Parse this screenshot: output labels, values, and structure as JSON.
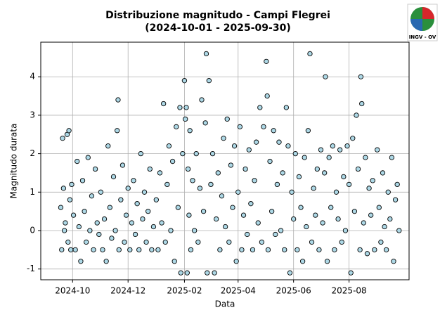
{
  "chart_data": {
    "type": "scatter",
    "title": "Distribuzione magnitudo - Campi Flegrei",
    "subtitle": "(2024-10-01 - 2025-09-30)",
    "x_label": "Data",
    "y_label": "Magnitudo durata",
    "logo_text": "INGV - OV",
    "color": "#add8e6",
    "edge_color": "#000000",
    "grid": true,
    "xlim": [
      "2024-08-27",
      "2025-10-06"
    ],
    "xticks": [
      {
        "value": "2024-10-01",
        "label": "2024-10"
      },
      {
        "value": "2024-12-01",
        "label": "2024-12"
      },
      {
        "value": "2025-02-01",
        "label": "2025-02"
      },
      {
        "value": "2025-04-01",
        "label": "2025-04"
      },
      {
        "value": "2025-06-01",
        "label": "2025-06"
      },
      {
        "value": "2025-08-01",
        "label": "2025-08"
      }
    ],
    "ylim": [
      -1.28,
      4.9
    ],
    "yticks": [
      -1,
      0,
      1,
      2,
      3,
      4
    ],
    "x": [
      "2024-09-18",
      "2024-09-19",
      "2024-09-20",
      "2024-09-21",
      "2024-09-22",
      "2024-09-23",
      "2024-09-25",
      "2024-09-26",
      "2024-09-27",
      "2024-09-28",
      "2024-09-29",
      "2024-09-30",
      "2024-10-02",
      "2024-10-04",
      "2024-10-06",
      "2024-10-08",
      "2024-10-10",
      "2024-10-12",
      "2024-10-14",
      "2024-10-16",
      "2024-10-18",
      "2024-10-20",
      "2024-10-22",
      "2024-10-24",
      "2024-10-26",
      "2024-10-28",
      "2024-10-30",
      "2024-11-01",
      "2024-11-03",
      "2024-11-05",
      "2024-11-07",
      "2024-11-09",
      "2024-11-11",
      "2024-11-13",
      "2024-11-15",
      "2024-11-17",
      "2024-11-19",
      "2024-11-20",
      "2024-11-21",
      "2024-11-23",
      "2024-11-25",
      "2024-11-27",
      "2024-11-29",
      "2024-12-01",
      "2024-12-03",
      "2024-12-05",
      "2024-12-07",
      "2024-12-09",
      "2024-12-11",
      "2024-12-13",
      "2024-12-15",
      "2024-12-17",
      "2024-12-19",
      "2024-12-21",
      "2024-12-23",
      "2024-12-25",
      "2024-12-27",
      "2024-12-29",
      "2025-01-01",
      "2025-01-03",
      "2025-01-05",
      "2025-01-07",
      "2025-01-09",
      "2025-01-11",
      "2025-01-13",
      "2025-01-15",
      "2025-01-17",
      "2025-01-19",
      "2025-01-21",
      "2025-01-23",
      "2025-01-25",
      "2025-01-27",
      "2025-01-28",
      "2025-01-30",
      "2025-02-01",
      "2025-02-02",
      "2025-02-03",
      "2025-02-04",
      "2025-02-05",
      "2025-02-06",
      "2025-02-07",
      "2025-02-08",
      "2025-02-10",
      "2025-02-12",
      "2025-02-14",
      "2025-02-16",
      "2025-02-18",
      "2025-02-20",
      "2025-02-22",
      "2025-02-24",
      "2025-02-25",
      "2025-02-26",
      "2025-02-28",
      "2025-03-02",
      "2025-03-04",
      "2025-03-06",
      "2025-03-08",
      "2025-03-10",
      "2025-03-12",
      "2025-03-14",
      "2025-03-16",
      "2025-03-18",
      "2025-03-20",
      "2025-03-22",
      "2025-03-24",
      "2025-03-26",
      "2025-03-28",
      "2025-03-30",
      "2025-04-01",
      "2025-04-03",
      "2025-04-05",
      "2025-04-07",
      "2025-04-09",
      "2025-04-11",
      "2025-04-13",
      "2025-04-15",
      "2025-04-17",
      "2025-04-19",
      "2025-04-21",
      "2025-04-23",
      "2025-04-25",
      "2025-04-27",
      "2025-04-29",
      "2025-05-02",
      "2025-05-03",
      "2025-05-04",
      "2025-05-06",
      "2025-05-08",
      "2025-05-10",
      "2025-05-12",
      "2025-05-14",
      "2025-05-16",
      "2025-05-18",
      "2025-05-20",
      "2025-05-22",
      "2025-05-24",
      "2025-05-26",
      "2025-05-28",
      "2025-05-30",
      "2025-06-01",
      "2025-06-03",
      "2025-06-05",
      "2025-06-07",
      "2025-06-09",
      "2025-06-11",
      "2025-06-13",
      "2025-06-15",
      "2025-06-17",
      "2025-06-19",
      "2025-06-21",
      "2025-06-23",
      "2025-06-25",
      "2025-06-27",
      "2025-06-29",
      "2025-07-01",
      "2025-07-03",
      "2025-07-05",
      "2025-07-06",
      "2025-07-08",
      "2025-07-10",
      "2025-07-12",
      "2025-07-14",
      "2025-07-16",
      "2025-07-18",
      "2025-07-20",
      "2025-07-22",
      "2025-07-24",
      "2025-07-26",
      "2025-07-28",
      "2025-07-30",
      "2025-08-01",
      "2025-08-03",
      "2025-08-05",
      "2025-08-07",
      "2025-08-09",
      "2025-08-11",
      "2025-08-13",
      "2025-08-14",
      "2025-08-15",
      "2025-08-17",
      "2025-08-19",
      "2025-08-21",
      "2025-08-23",
      "2025-08-25",
      "2025-08-27",
      "2025-08-29",
      "2025-09-01",
      "2025-09-03",
      "2025-09-05",
      "2025-09-07",
      "2025-09-09",
      "2025-09-11",
      "2025-09-13",
      "2025-09-15",
      "2025-09-17",
      "2025-09-19",
      "2025-09-21",
      "2025-09-23",
      "2025-09-25"
    ],
    "values": [
      0.6,
      -0.5,
      2.4,
      1.1,
      0.0,
      0.2,
      2.5,
      -0.3,
      2.6,
      0.8,
      -0.5,
      1.2,
      0.4,
      -0.5,
      1.8,
      0.1,
      -0.8,
      1.3,
      0.5,
      -0.3,
      1.9,
      0.0,
      0.9,
      -0.5,
      1.6,
      0.2,
      -0.1,
      1.0,
      -0.5,
      0.3,
      -0.8,
      2.2,
      0.6,
      -0.2,
      1.4,
      0.0,
      2.6,
      3.4,
      -0.5,
      0.8,
      1.7,
      -0.3,
      0.4,
      1.1,
      -0.5,
      0.2,
      1.3,
      -0.1,
      0.7,
      -0.5,
      2.0,
      0.3,
      1.0,
      -0.3,
      0.5,
      1.6,
      -0.5,
      0.1,
      0.8,
      -0.5,
      1.5,
      0.2,
      3.3,
      -0.3,
      1.2,
      2.2,
      0.0,
      1.8,
      -0.8,
      2.7,
      0.6,
      3.2,
      -1.1,
      2.0,
      3.9,
      2.9,
      3.2,
      -1.1,
      1.6,
      0.4,
      2.6,
      -0.5,
      1.3,
      0.0,
      2.0,
      -0.3,
      1.1,
      3.4,
      0.5,
      2.8,
      4.6,
      -1.1,
      3.9,
      1.2,
      2.0,
      -1.1,
      0.3,
      1.5,
      -0.5,
      0.9,
      2.4,
      0.1,
      2.9,
      -0.3,
      1.7,
      0.6,
      2.2,
      -0.8,
      1.0,
      2.7,
      -0.5,
      0.4,
      1.6,
      -0.1,
      2.1,
      0.7,
      -0.5,
      1.3,
      2.3,
      0.2,
      3.2,
      -0.3,
      2.7,
      4.4,
      3.5,
      -0.5,
      1.8,
      0.5,
      2.6,
      -0.1,
      1.2,
      2.3,
      0.0,
      1.5,
      -0.5,
      3.2,
      2.2,
      -1.1,
      1.0,
      0.3,
      2.0,
      -0.5,
      1.4,
      0.6,
      -0.8,
      1.9,
      0.1,
      2.6,
      4.6,
      -0.3,
      1.1,
      0.4,
      1.6,
      -0.5,
      2.1,
      0.2,
      1.5,
      4.0,
      -0.8,
      1.9,
      0.6,
      2.2,
      -0.5,
      1.0,
      0.3,
      2.1,
      -0.3,
      1.4,
      0.0,
      2.2,
      1.2,
      -1.1,
      2.4,
      0.5,
      3.0,
      1.6,
      -0.5,
      4.0,
      3.3,
      0.2,
      1.9,
      -0.6,
      1.1,
      0.4,
      1.3,
      -0.5,
      2.1,
      0.6,
      -0.3,
      1.5,
      0.1,
      -0.5,
      1.0,
      0.3,
      1.9,
      -0.8,
      0.8,
      1.2,
      0.0
    ]
  }
}
